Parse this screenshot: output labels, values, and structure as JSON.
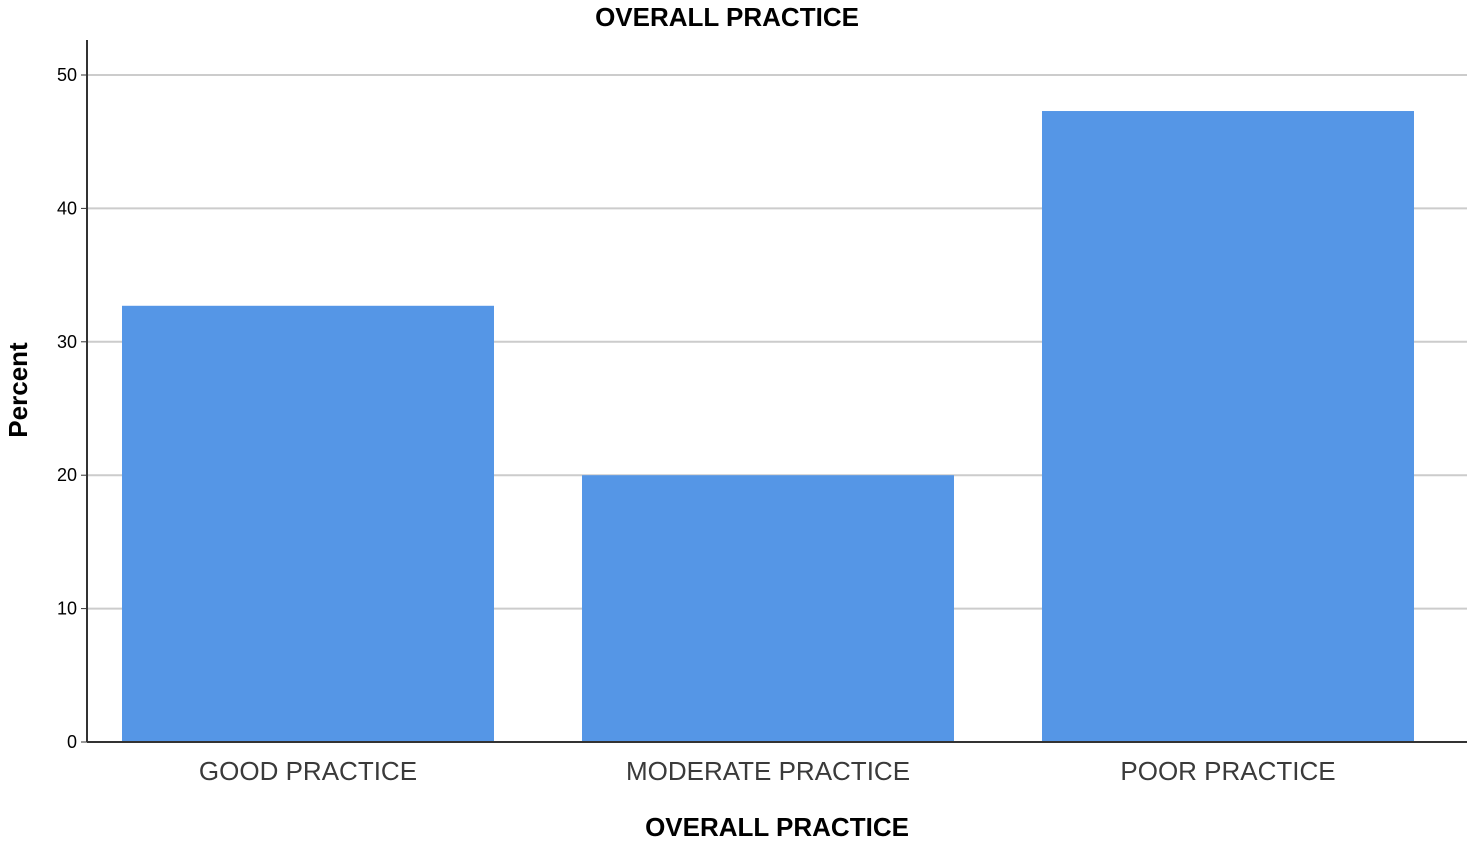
{
  "chart_data": {
    "type": "bar",
    "title": "OVERALL PRACTICE",
    "xlabel": "OVERALL PRACTICE",
    "ylabel": "Percent",
    "categories": [
      "GOOD PRACTICE",
      "MODERATE PRACTICE",
      "POOR PRACTICE"
    ],
    "values": [
      32.7,
      20.0,
      47.3
    ],
    "ylim": [
      0,
      50
    ],
    "yticks": [
      0,
      10,
      20,
      30,
      40,
      50
    ],
    "grid": true,
    "legend": "none",
    "colors": {
      "bar": "#5596e6",
      "grid": "#cccccc",
      "axis": "#333333"
    }
  }
}
